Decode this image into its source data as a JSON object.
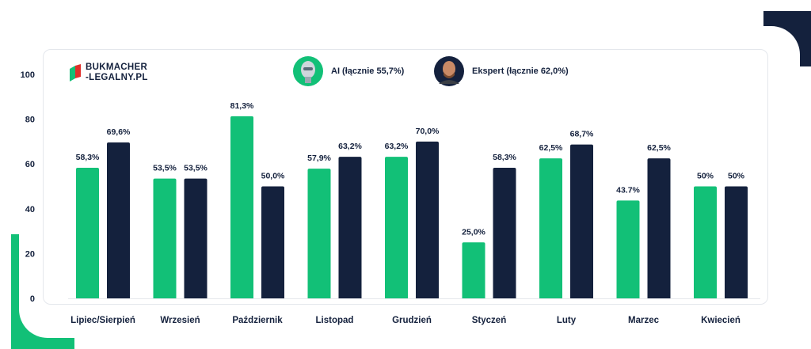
{
  "brand": {
    "line1": "BUKMACHER",
    "line2": "-LEGALNY.PL"
  },
  "legend": {
    "ai": {
      "label": "AI (łącznie 55,7%)",
      "icon": "robot-avatar-icon"
    },
    "expert": {
      "label": "Ekspert (łącznie 62,0%)",
      "icon": "expert-photo-icon"
    }
  },
  "colors": {
    "ai": "#12c077",
    "expert": "#14213d",
    "text": "#14213d"
  },
  "chart_data": {
    "type": "bar",
    "title": "",
    "xlabel": "",
    "ylabel": "",
    "ylim": [
      0,
      100
    ],
    "yticks": [
      0,
      20,
      40,
      60,
      80,
      100
    ],
    "grid": false,
    "legend_position": "top-center",
    "categories": [
      "Lipiec/Sierpień",
      "Wrzesień",
      "Październik",
      "Listopad",
      "Grudzień",
      "Styczeń",
      "Luty",
      "Marzec",
      "Kwiecień"
    ],
    "series": [
      {
        "name": "AI",
        "values": [
          58.3,
          53.5,
          81.3,
          57.9,
          63.2,
          25.0,
          62.5,
          43.7,
          50
        ],
        "labels": [
          "58,3%",
          "53,5%",
          "81,3%",
          "57,9%",
          "63,2%",
          "25,0%",
          "62,5%",
          "43.7%",
          "50%"
        ]
      },
      {
        "name": "Ekspert",
        "values": [
          69.6,
          53.5,
          50.0,
          63.2,
          70.0,
          58.3,
          68.7,
          62.5,
          50
        ],
        "labels": [
          "69,6%",
          "53,5%",
          "50,0%",
          "63,2%",
          "70,0%",
          "58,3%",
          "68,7%",
          "62,5%",
          "50%"
        ]
      }
    ]
  }
}
